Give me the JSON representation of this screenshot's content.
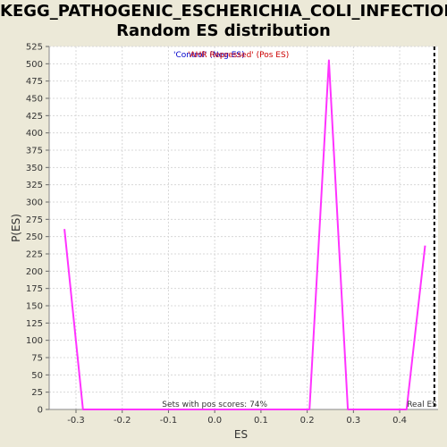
{
  "chart_data": {
    "type": "line",
    "title": "KEGG_PATHOGENIC_ESCHERICHIA_COLI_INFECTION:",
    "subtitle": "Random ES distribution",
    "xlabel": "ES",
    "ylabel": "P(ES)",
    "xlim": [
      -0.358,
      0.483
    ],
    "ylim": [
      0,
      525
    ],
    "xticks": [
      -0.3,
      -0.2,
      -0.1,
      0.0,
      0.1,
      0.2,
      0.3,
      0.4
    ],
    "xtick_labels": [
      "-0.3",
      "-0.2",
      "-0.1",
      "0.0",
      "0.1",
      "0.2",
      "0.3",
      "0.4"
    ],
    "yticks": [
      0,
      25,
      50,
      75,
      100,
      125,
      150,
      175,
      200,
      225,
      250,
      275,
      300,
      325,
      350,
      375,
      400,
      425,
      450,
      475,
      500,
      525
    ],
    "grid": true,
    "series": [
      {
        "color": "#ff33ff",
        "x": [
          -0.325,
          -0.285,
          0.205,
          0.247,
          0.288,
          0.415,
          0.455
        ],
        "y": [
          261,
          0,
          0,
          505,
          0,
          0,
          237
        ]
      }
    ],
    "real_es": 0.475,
    "real_es_label": "Real ES",
    "legend": {
      "neg": "'Control' (Neg ES)",
      "pos": "'AHR Repressed' (Pos ES)",
      "neg_color": "#0000cc",
      "pos_color": "#cc0000"
    },
    "annotation": "Sets with pos scores: 74%"
  }
}
